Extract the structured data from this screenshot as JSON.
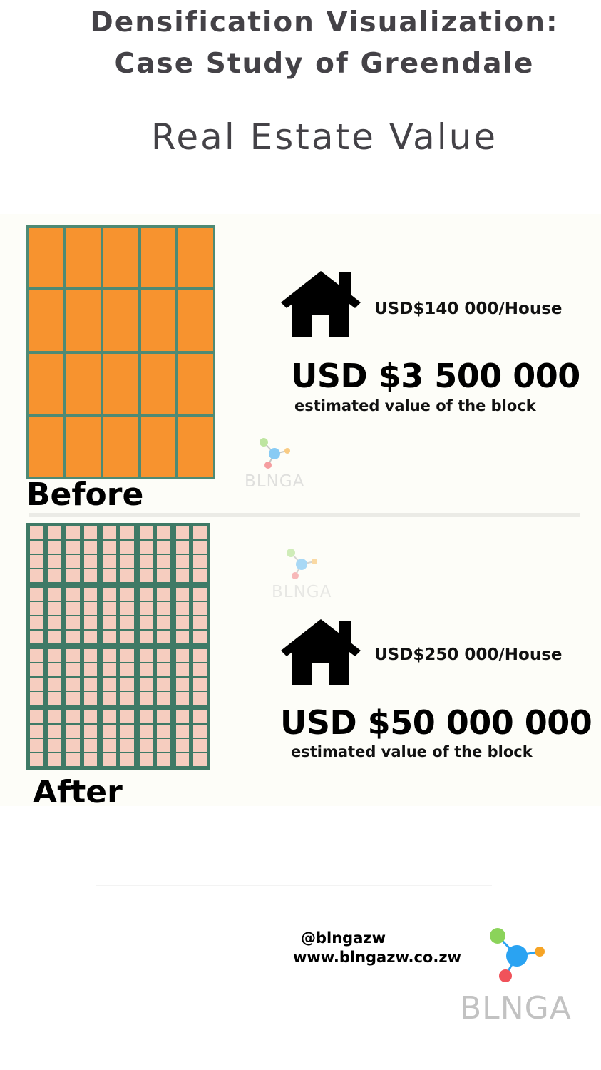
{
  "header": {
    "title_line1": "Densification Visualization:",
    "title_line2": "Case Study of Greendale",
    "subtitle": "Real Estate Value"
  },
  "before": {
    "label": "Before",
    "price_per_house": "USD$140 000/House",
    "total_value": "USD $3 500 000",
    "note": "estimated  value of the block",
    "grid": {
      "columns": 5,
      "rows": 4,
      "color": "#f7932f"
    }
  },
  "after": {
    "label": "After",
    "price_per_house": "USD$250 000/House",
    "total_value": "USD $50 000 000",
    "note": "estimated  value of the block",
    "grid": {
      "columns": 5,
      "rows": 4,
      "color": "#f6cdbf"
    }
  },
  "footer": {
    "handle": "@blngazw",
    "website": "www.blngazw.co.zw"
  },
  "logo": {
    "text": "BLNGA",
    "colors": {
      "green": "#8bd35a",
      "blue": "#2aa3f2",
      "orange": "#f6a425",
      "red": "#f0525a"
    }
  },
  "colors": {
    "grid_border": "#4e8a74",
    "title": "#444247"
  }
}
